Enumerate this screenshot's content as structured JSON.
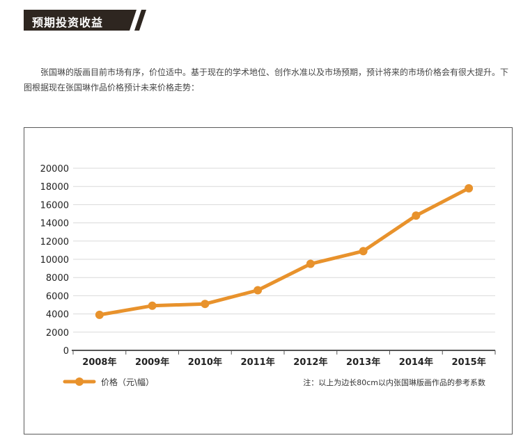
{
  "section_title": "预期投资收益",
  "intro_text": "张国琳的版画目前市场有序，价位适中。基于现在的学术地位、创作水准以及市场预期，预计将来的市场价格会有很大提升。下图根据现在张国琳作品价格预计未来价格走势：",
  "colors": {
    "banner": "#2e2620",
    "series": "#e8922c",
    "grid": "#d9d9d9",
    "axis": "#555555"
  },
  "chart_data": {
    "type": "line",
    "categories": [
      "2008年",
      "2009年",
      "2010年",
      "2011年",
      "2012年",
      "2013年",
      "2014年",
      "2015年"
    ],
    "series": [
      {
        "name": "价格（元\\幅）",
        "values": [
          3900,
          4900,
          5100,
          6600,
          9500,
          10900,
          14800,
          17800
        ]
      }
    ],
    "ylim": [
      0,
      20000
    ],
    "yticks": [
      0,
      2000,
      4000,
      6000,
      8000,
      10000,
      12000,
      14000,
      16000,
      18000,
      20000
    ],
    "grid": true,
    "legend_position": "bottom-left",
    "note": "注：以上为边长80cm以内张国琳版画作品的参考系数"
  }
}
